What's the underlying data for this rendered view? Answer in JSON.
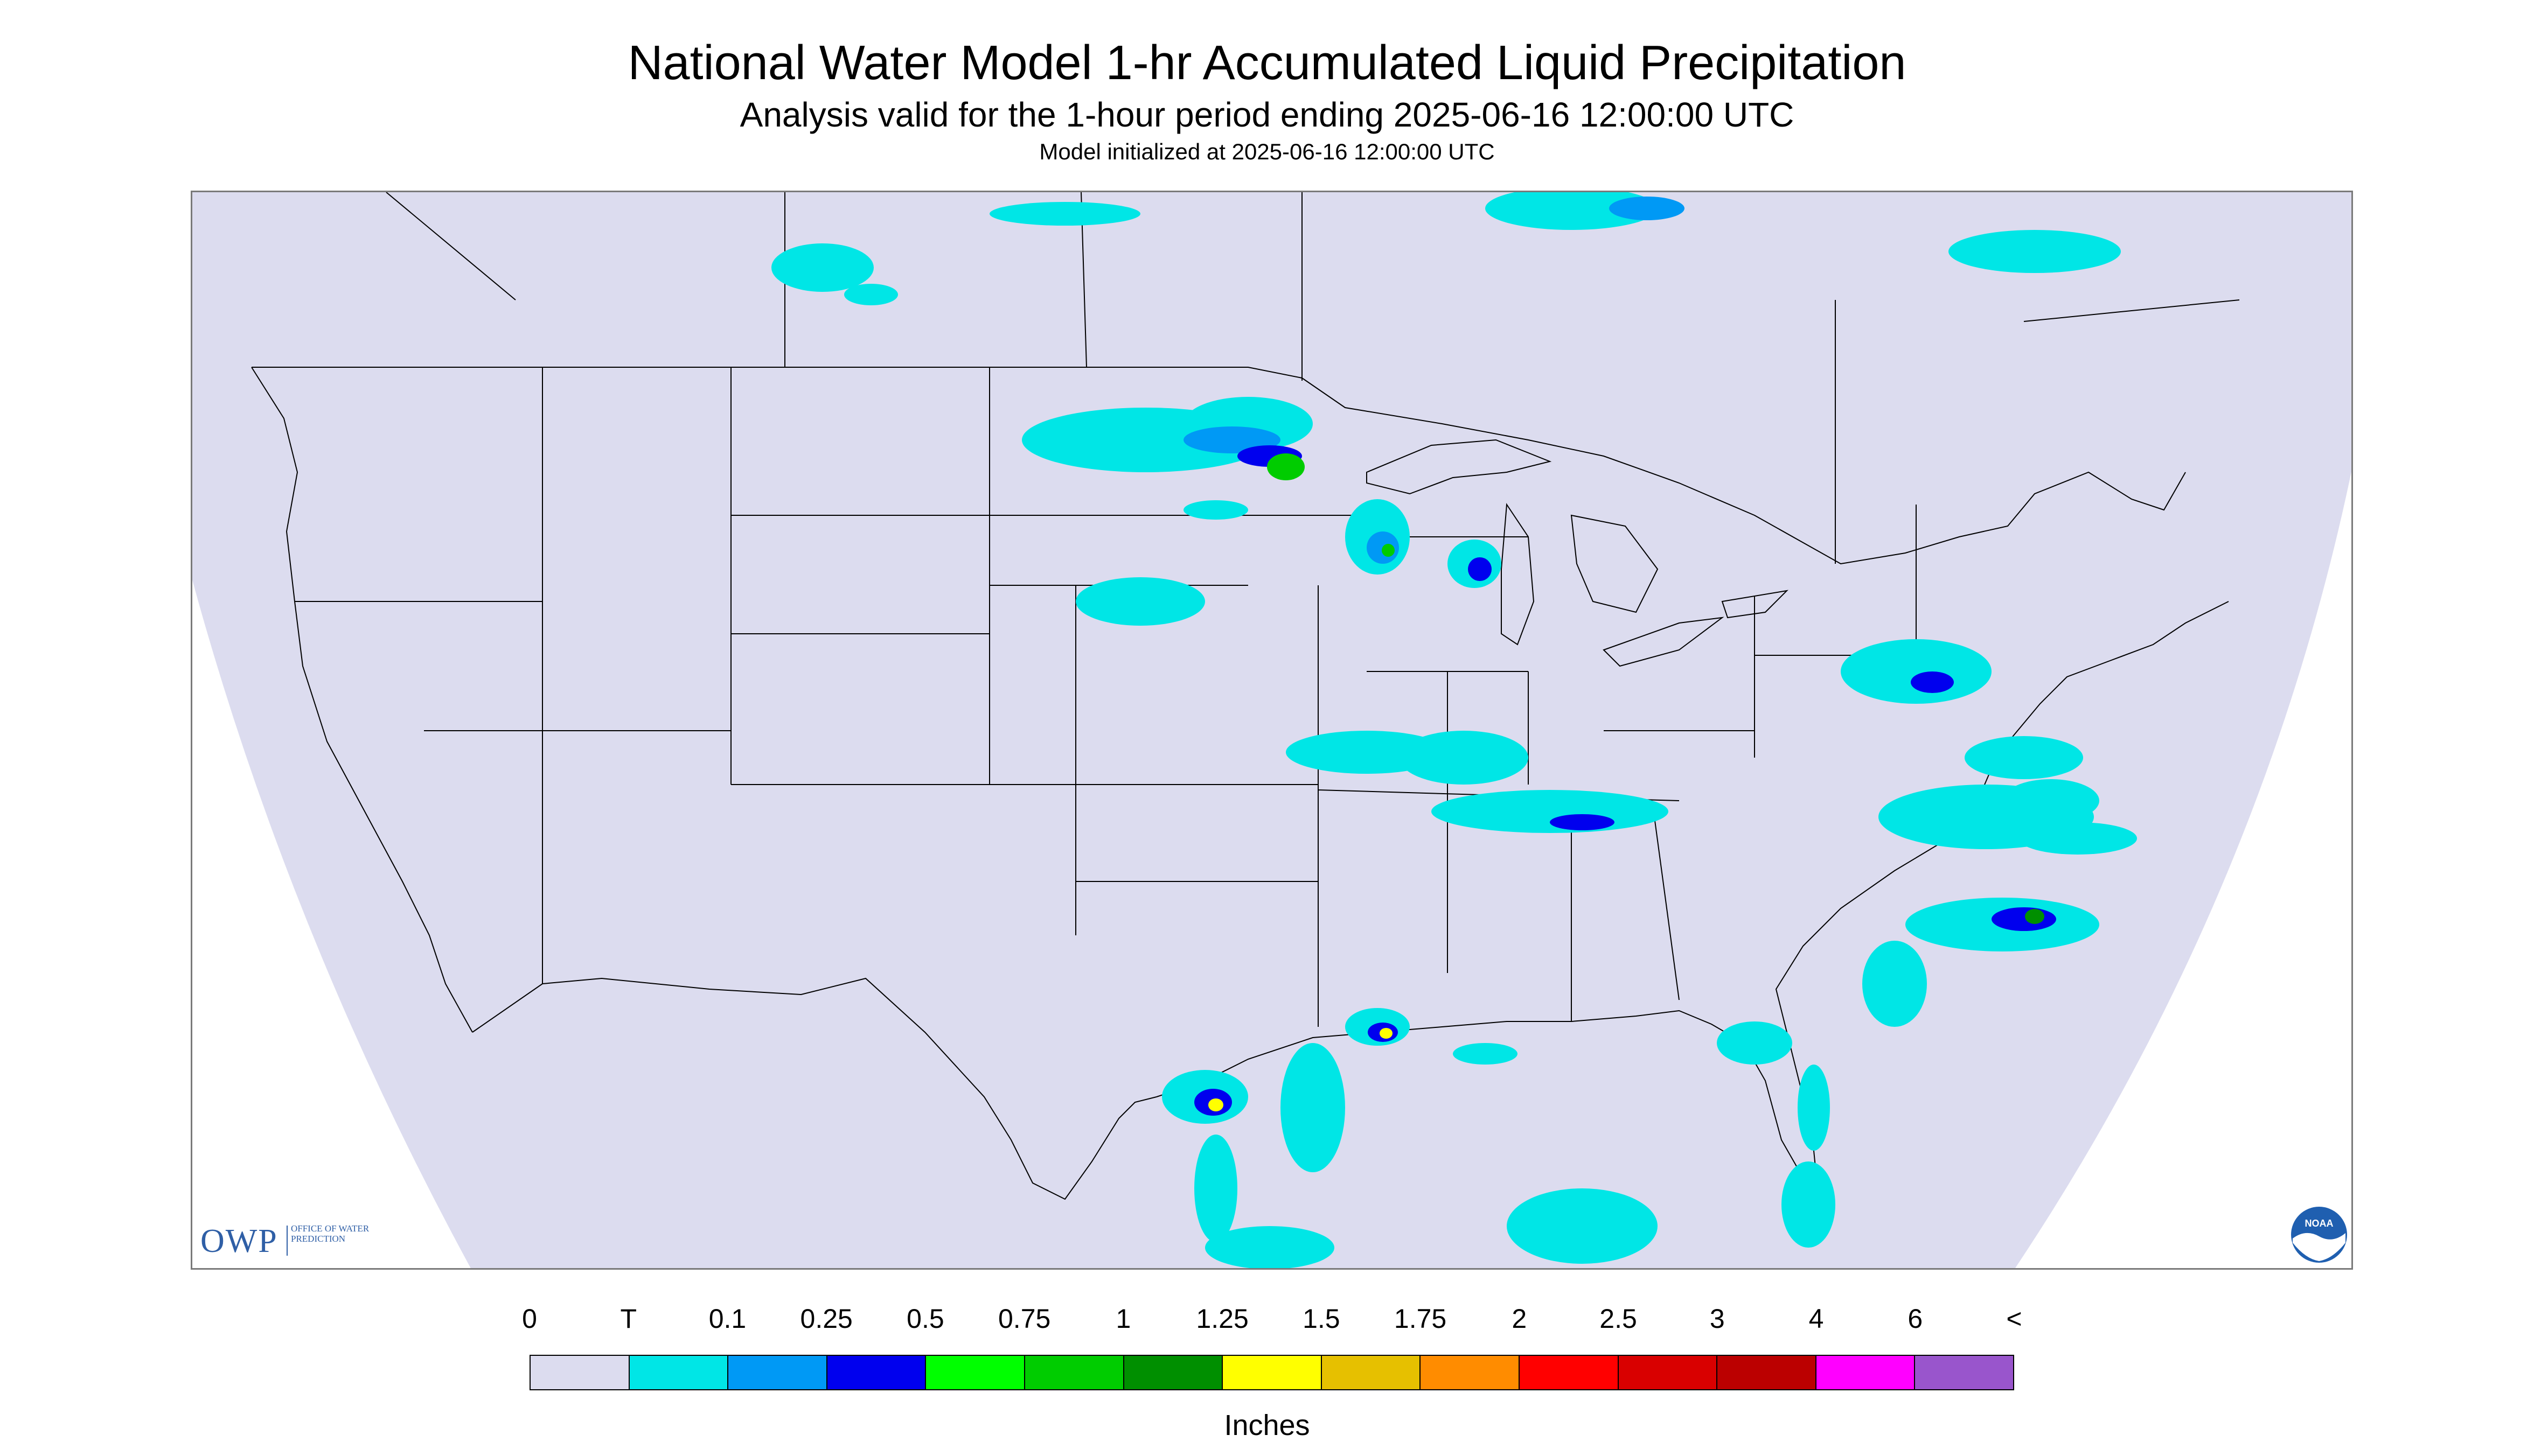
{
  "header": {
    "title": "National Water Model 1-hr Accumulated Liquid Precipitation",
    "subtitle": "Analysis valid for the 1-hour period ending 2025-06-16 12:00:00 UTC",
    "initialized": "Model initialized at 2025-06-16 12:00:00 UTC"
  },
  "map": {
    "domain_color": "#dcdcef",
    "outside_color": "#ffffff",
    "line_color": "#000000",
    "region": "Continental United States",
    "precip_areas": [
      {
        "region": "Southern Saskatchewan",
        "max_class": "T"
      },
      {
        "region": "Hudson Bay / northern Ontario",
        "max_class": "0.25"
      },
      {
        "region": "North Dakota / Minnesota border",
        "max_class": "0.75"
      },
      {
        "region": "Central Wisconsin",
        "max_class": "0.75"
      },
      {
        "region": "South Dakota",
        "max_class": "0.1"
      },
      {
        "region": "Missouri / Illinois / Kentucky / Tennessee",
        "max_class": "0.25"
      },
      {
        "region": "Mid-Atlantic / Virginia",
        "max_class": "0.25"
      },
      {
        "region": "Offshore North Carolina",
        "max_class": "1"
      },
      {
        "region": "Louisiana coast",
        "max_class": "1.25"
      },
      {
        "region": "Upper Texas coast",
        "max_class": "1.25"
      },
      {
        "region": "Gulf of Mexico",
        "max_class": "0.1"
      },
      {
        "region": "Florida",
        "max_class": "0.1"
      }
    ]
  },
  "logos": {
    "owp": {
      "letters": "OWP",
      "text": "OFFICE OF WATER PREDICTION",
      "color": "#2f5fa6"
    },
    "noaa": {
      "text": "NOAA",
      "color": "#1f5fb0"
    }
  },
  "legend": {
    "units": "Inches",
    "labels": [
      "0",
      "T",
      "0.1",
      "0.25",
      "0.5",
      "0.75",
      "1",
      "1.25",
      "1.5",
      "1.75",
      "2",
      "2.5",
      "3",
      "4",
      "6",
      "<"
    ],
    "colors": [
      "#dcdcef",
      "#00e6e6",
      "#0099f5",
      "#0000ee",
      "#00ff00",
      "#00cc00",
      "#008f00",
      "#ffff00",
      "#e6c000",
      "#ff8c00",
      "#ff0000",
      "#d90000",
      "#bb0000",
      "#ff00ff",
      "#9955cc"
    ]
  }
}
